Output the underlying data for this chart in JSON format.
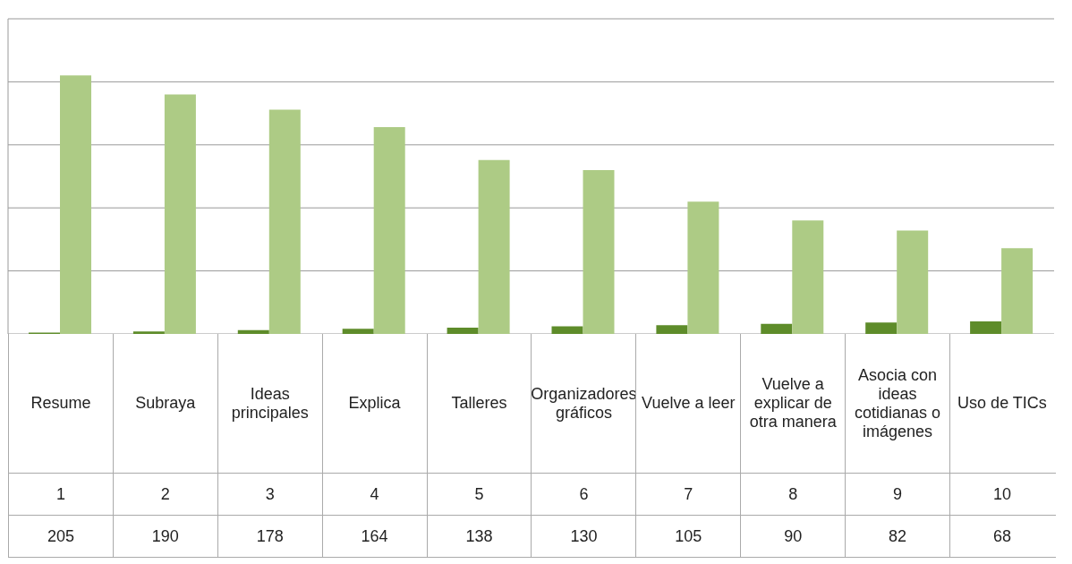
{
  "chart_data": {
    "type": "bar",
    "categories": [
      "Resume",
      "Subraya",
      "Ideas principales",
      "Explica",
      "Talleres",
      "Organizadores gráficos",
      "Vuelve a leer",
      "Vuelve a explicar de otra manera",
      "Asocia con ideas cotidianas o imágenes",
      "Uso de TICs"
    ],
    "series": [
      {
        "color": "#5e8c2a",
        "values": [
          1,
          2,
          3,
          4,
          5,
          6,
          7,
          8,
          9,
          10
        ]
      },
      {
        "color": "#adcb85",
        "values": [
          205,
          190,
          178,
          164,
          138,
          130,
          105,
          90,
          82,
          68
        ]
      }
    ],
    "ylim": [
      0,
      250
    ],
    "yticks": [
      {
        "value": 0,
        "label": null
      },
      {
        "value": 50,
        "label": null
      },
      {
        "value": 100,
        "label": null
      },
      {
        "value": 150,
        "label": null
      },
      {
        "value": 200,
        "label": null
      },
      {
        "value": 250,
        "label": null
      }
    ],
    "grid": "y",
    "tick_labels": "x",
    "data_labels": true
  }
}
